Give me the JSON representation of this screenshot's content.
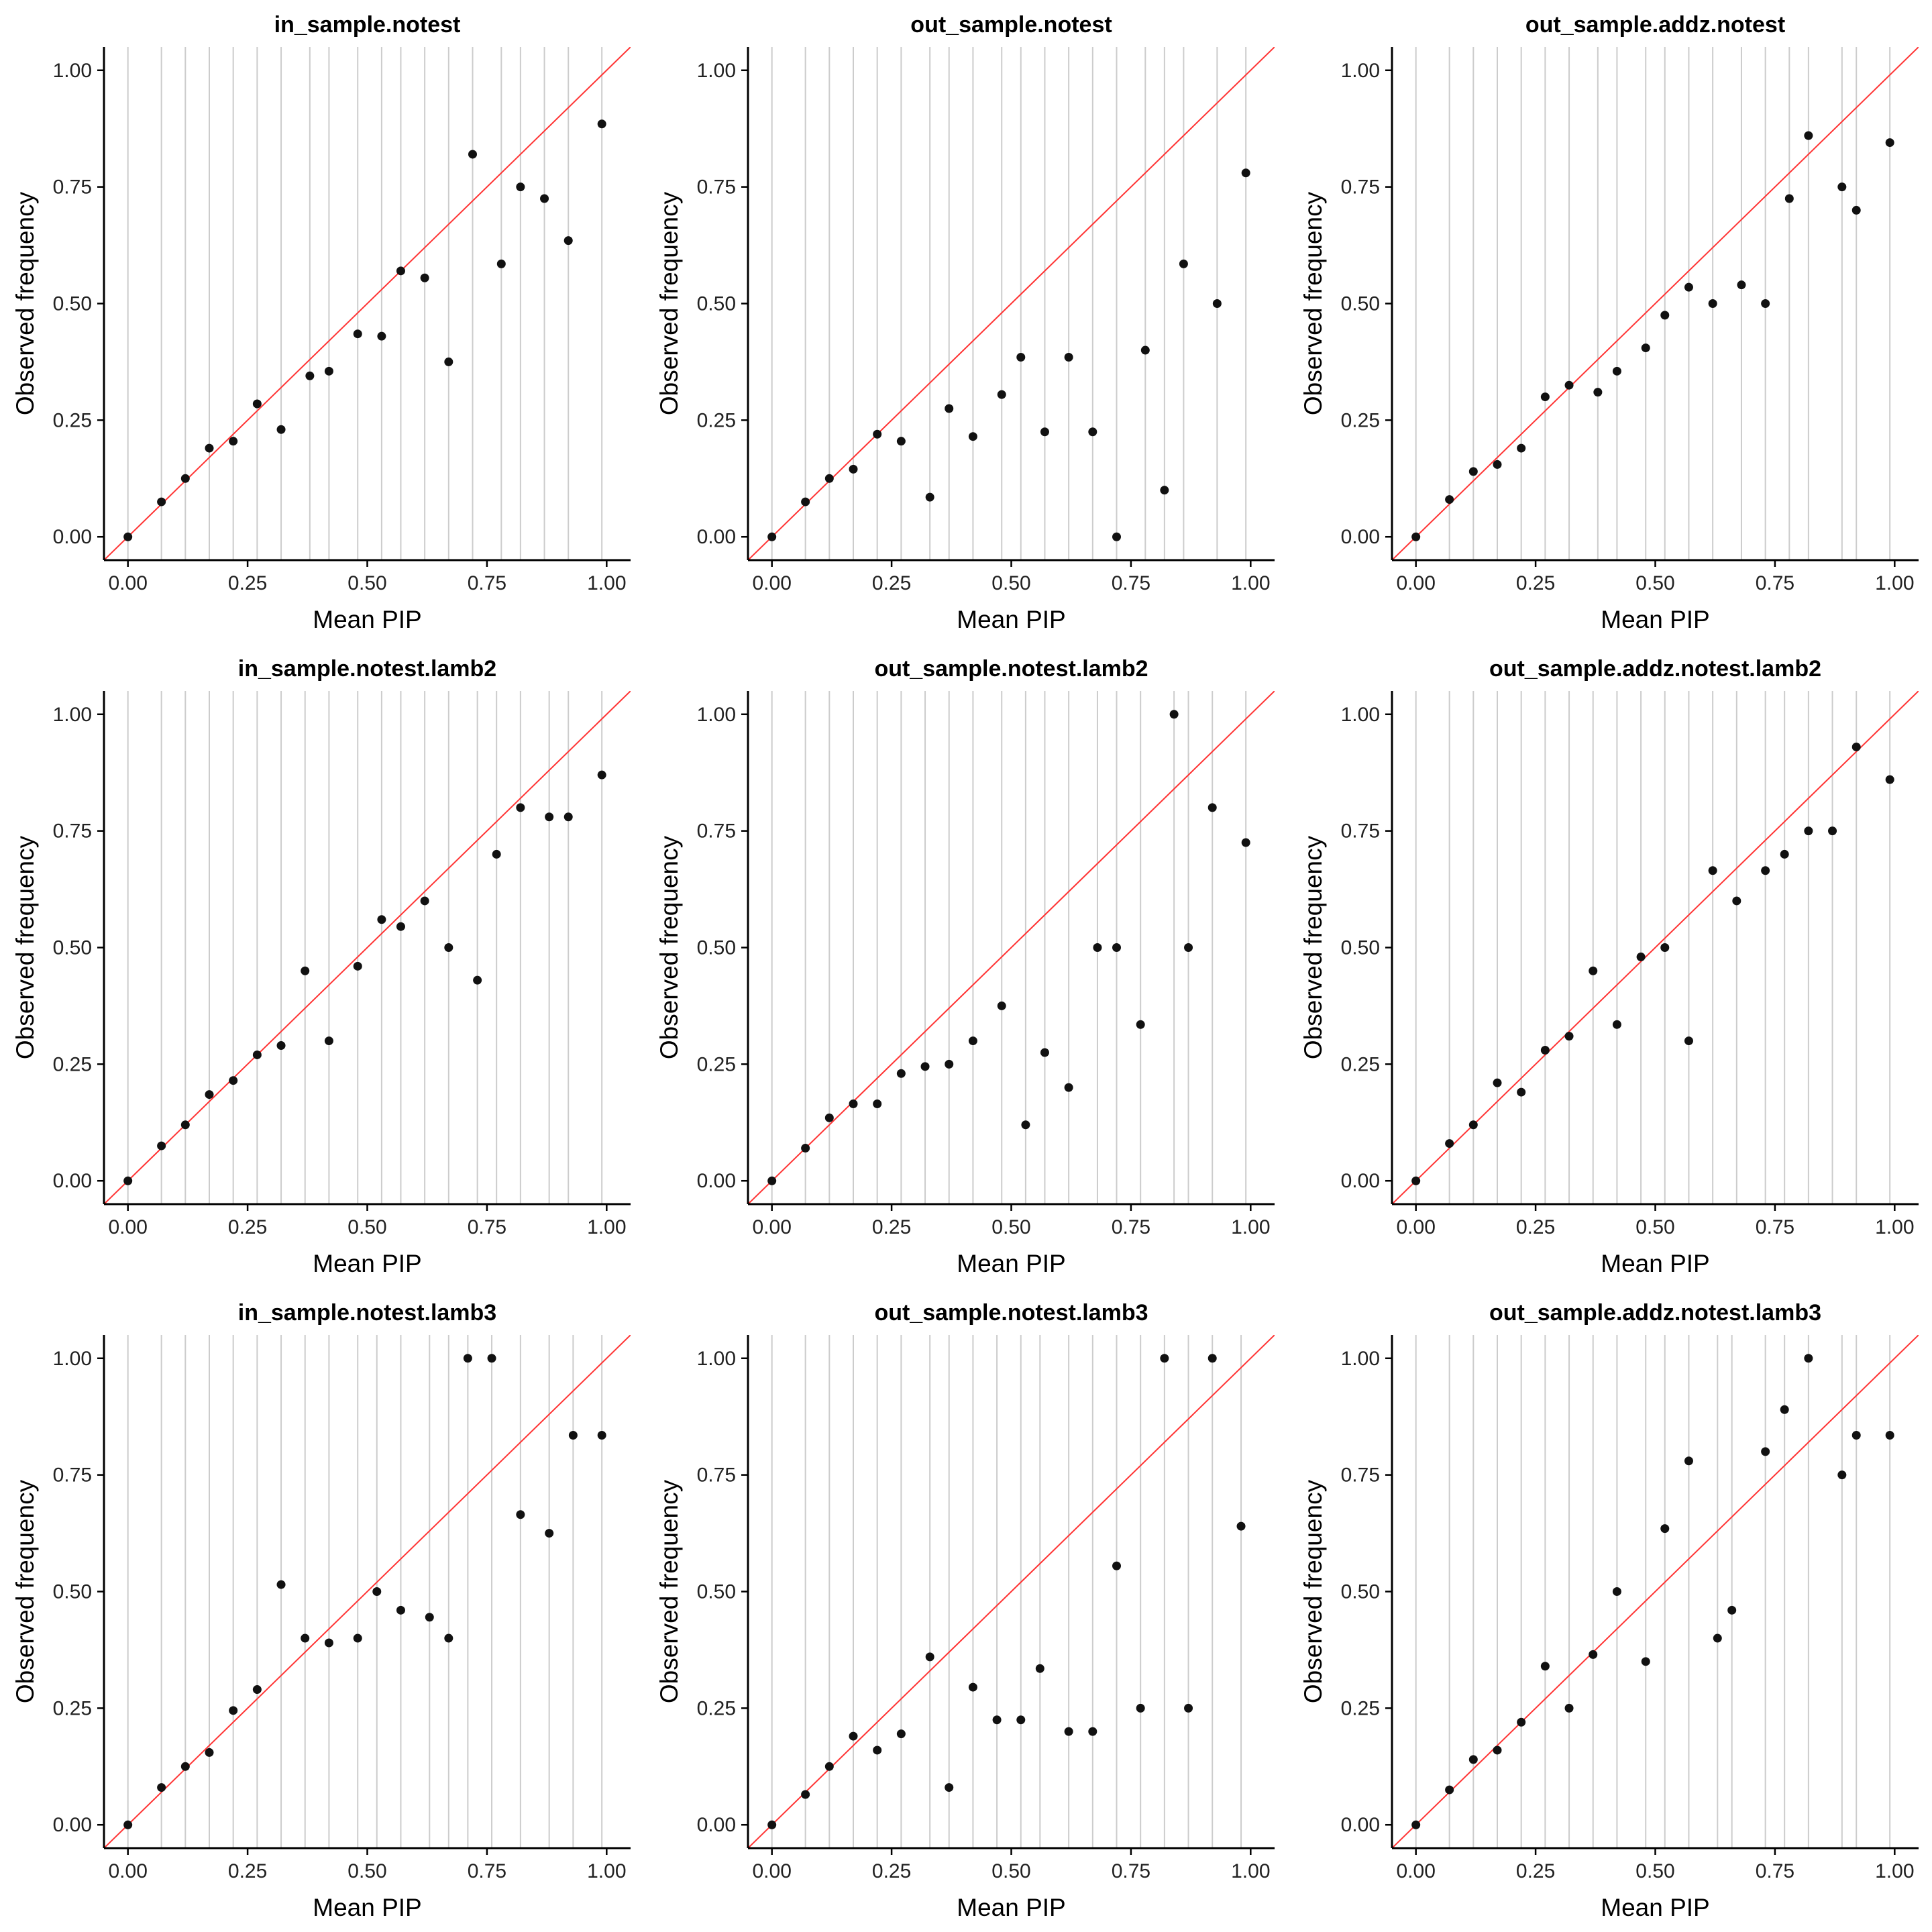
{
  "colors": {
    "identity_line": "#ff3333",
    "points": "#111111",
    "grid": "#cccccc",
    "axis": "#000000"
  },
  "chart_data": [
    {
      "type": "scatter",
      "title": "in_sample.notest",
      "xlabel": "Mean PIP",
      "ylabel": "Observed frequency",
      "xlim": [
        -0.05,
        1.05
      ],
      "ylim": [
        -0.05,
        1.05
      ],
      "xticks": [
        "0.00",
        "0.25",
        "0.50",
        "0.75",
        "1.00"
      ],
      "yticks": [
        "0.00",
        "0.25",
        "0.50",
        "0.75",
        "1.00"
      ],
      "reference_line": "y = x",
      "x": [
        0.0,
        0.07,
        0.12,
        0.17,
        0.22,
        0.27,
        0.32,
        0.38,
        0.42,
        0.48,
        0.53,
        0.57,
        0.62,
        0.67,
        0.72,
        0.78,
        0.82,
        0.87,
        0.92,
        0.99
      ],
      "y": [
        0.0,
        0.075,
        0.125,
        0.19,
        0.205,
        0.285,
        0.23,
        0.345,
        0.355,
        0.435,
        0.43,
        0.57,
        0.555,
        0.375,
        0.82,
        0.585,
        0.75,
        0.725,
        0.635,
        0.885
      ]
    },
    {
      "type": "scatter",
      "title": "out_sample.notest",
      "xlabel": "Mean PIP",
      "ylabel": "Observed frequency",
      "xlim": [
        -0.05,
        1.05
      ],
      "ylim": [
        -0.05,
        1.05
      ],
      "xticks": [
        "0.00",
        "0.25",
        "0.50",
        "0.75",
        "1.00"
      ],
      "yticks": [
        "0.00",
        "0.25",
        "0.50",
        "0.75",
        "1.00"
      ],
      "reference_line": "y = x",
      "x": [
        0.0,
        0.07,
        0.12,
        0.17,
        0.22,
        0.27,
        0.33,
        0.37,
        0.42,
        0.48,
        0.52,
        0.57,
        0.62,
        0.67,
        0.72,
        0.78,
        0.82,
        0.86,
        0.93,
        0.99
      ],
      "y": [
        0.0,
        0.075,
        0.125,
        0.145,
        0.22,
        0.205,
        0.085,
        0.275,
        0.215,
        0.305,
        0.385,
        0.225,
        0.385,
        0.225,
        0.0,
        0.4,
        0.1,
        0.585,
        0.5,
        0.78
      ]
    },
    {
      "type": "scatter",
      "title": "out_sample.addz.notest",
      "xlabel": "Mean PIP",
      "ylabel": "Observed frequency",
      "xlim": [
        -0.05,
        1.05
      ],
      "ylim": [
        -0.05,
        1.05
      ],
      "xticks": [
        "0.00",
        "0.25",
        "0.50",
        "0.75",
        "1.00"
      ],
      "yticks": [
        "0.00",
        "0.25",
        "0.50",
        "0.75",
        "1.00"
      ],
      "reference_line": "y = x",
      "x": [
        0.0,
        0.07,
        0.12,
        0.17,
        0.22,
        0.27,
        0.32,
        0.38,
        0.42,
        0.48,
        0.52,
        0.57,
        0.62,
        0.68,
        0.73,
        0.78,
        0.82,
        0.89,
        0.92,
        0.99
      ],
      "y": [
        0.0,
        0.08,
        0.14,
        0.155,
        0.19,
        0.3,
        0.325,
        0.31,
        0.355,
        0.405,
        0.475,
        0.535,
        0.5,
        0.54,
        0.5,
        0.725,
        0.86,
        0.75,
        0.7,
        0.845
      ]
    },
    {
      "type": "scatter",
      "title": "in_sample.notest.lamb2",
      "xlabel": "Mean PIP",
      "ylabel": "Observed frequency",
      "xlim": [
        -0.05,
        1.05
      ],
      "ylim": [
        -0.05,
        1.05
      ],
      "xticks": [
        "0.00",
        "0.25",
        "0.50",
        "0.75",
        "1.00"
      ],
      "yticks": [
        "0.00",
        "0.25",
        "0.50",
        "0.75",
        "1.00"
      ],
      "reference_line": "y = x",
      "x": [
        0.0,
        0.07,
        0.12,
        0.17,
        0.22,
        0.27,
        0.32,
        0.37,
        0.42,
        0.48,
        0.53,
        0.57,
        0.62,
        0.67,
        0.73,
        0.77,
        0.82,
        0.88,
        0.92,
        0.99
      ],
      "y": [
        0.0,
        0.075,
        0.12,
        0.185,
        0.215,
        0.27,
        0.29,
        0.45,
        0.3,
        0.46,
        0.56,
        0.545,
        0.6,
        0.5,
        0.43,
        0.7,
        0.8,
        0.78,
        0.78,
        0.87
      ]
    },
    {
      "type": "scatter",
      "title": "out_sample.notest.lamb2",
      "xlabel": "Mean PIP",
      "ylabel": "Observed frequency",
      "xlim": [
        -0.05,
        1.05
      ],
      "ylim": [
        -0.05,
        1.05
      ],
      "xticks": [
        "0.00",
        "0.25",
        "0.50",
        "0.75",
        "1.00"
      ],
      "yticks": [
        "0.00",
        "0.25",
        "0.50",
        "0.75",
        "1.00"
      ],
      "reference_line": "y = x",
      "x": [
        0.0,
        0.07,
        0.12,
        0.17,
        0.22,
        0.27,
        0.32,
        0.37,
        0.42,
        0.48,
        0.53,
        0.57,
        0.62,
        0.68,
        0.72,
        0.77,
        0.84,
        0.87,
        0.92,
        0.99
      ],
      "y": [
        0.0,
        0.07,
        0.135,
        0.165,
        0.165,
        0.23,
        0.245,
        0.25,
        0.3,
        0.375,
        0.12,
        0.275,
        0.2,
        0.5,
        0.5,
        0.335,
        1.0,
        0.5,
        0.8,
        0.725
      ]
    },
    {
      "type": "scatter",
      "title": "out_sample.addz.notest.lamb2",
      "xlabel": "Mean PIP",
      "ylabel": "Observed frequency",
      "xlim": [
        -0.05,
        1.05
      ],
      "ylim": [
        -0.05,
        1.05
      ],
      "xticks": [
        "0.00",
        "0.25",
        "0.50",
        "0.75",
        "1.00"
      ],
      "yticks": [
        "0.00",
        "0.25",
        "0.50",
        "0.75",
        "1.00"
      ],
      "reference_line": "y = x",
      "x": [
        0.0,
        0.07,
        0.12,
        0.17,
        0.22,
        0.27,
        0.32,
        0.37,
        0.42,
        0.47,
        0.52,
        0.57,
        0.62,
        0.67,
        0.73,
        0.77,
        0.82,
        0.87,
        0.92,
        0.99
      ],
      "y": [
        0.0,
        0.08,
        0.12,
        0.21,
        0.19,
        0.28,
        0.31,
        0.45,
        0.335,
        0.48,
        0.5,
        0.3,
        0.665,
        0.6,
        0.665,
        0.7,
        0.75,
        0.75,
        0.93,
        0.86
      ]
    },
    {
      "type": "scatter",
      "title": "in_sample.notest.lamb3",
      "xlabel": "Mean PIP",
      "ylabel": "Observed frequency",
      "xlim": [
        -0.05,
        1.05
      ],
      "ylim": [
        -0.05,
        1.05
      ],
      "xticks": [
        "0.00",
        "0.25",
        "0.50",
        "0.75",
        "1.00"
      ],
      "yticks": [
        "0.00",
        "0.25",
        "0.50",
        "0.75",
        "1.00"
      ],
      "reference_line": "y = x",
      "x": [
        0.0,
        0.07,
        0.12,
        0.17,
        0.22,
        0.27,
        0.32,
        0.37,
        0.42,
        0.48,
        0.52,
        0.57,
        0.63,
        0.67,
        0.71,
        0.76,
        0.82,
        0.88,
        0.93,
        0.99
      ],
      "y": [
        0.0,
        0.08,
        0.125,
        0.155,
        0.245,
        0.29,
        0.515,
        0.4,
        0.39,
        0.4,
        0.5,
        0.46,
        0.445,
        0.4,
        1.0,
        1.0,
        0.665,
        0.625,
        0.835,
        0.835
      ]
    },
    {
      "type": "scatter",
      "title": "out_sample.notest.lamb3",
      "xlabel": "Mean PIP",
      "ylabel": "Observed frequency",
      "xlim": [
        -0.05,
        1.05
      ],
      "ylim": [
        -0.05,
        1.05
      ],
      "xticks": [
        "0.00",
        "0.25",
        "0.50",
        "0.75",
        "1.00"
      ],
      "yticks": [
        "0.00",
        "0.25",
        "0.50",
        "0.75",
        "1.00"
      ],
      "reference_line": "y = x",
      "x": [
        0.0,
        0.07,
        0.12,
        0.17,
        0.22,
        0.27,
        0.33,
        0.37,
        0.42,
        0.47,
        0.52,
        0.56,
        0.62,
        0.67,
        0.72,
        0.77,
        0.82,
        0.87,
        0.92,
        0.98
      ],
      "y": [
        0.0,
        0.065,
        0.125,
        0.19,
        0.16,
        0.195,
        0.36,
        0.08,
        0.295,
        0.225,
        0.225,
        0.335,
        0.2,
        0.2,
        0.555,
        0.25,
        1.0,
        0.25,
        1.0,
        0.64
      ]
    },
    {
      "type": "scatter",
      "title": "out_sample.addz.notest.lamb3",
      "xlabel": "Mean PIP",
      "ylabel": "Observed frequency",
      "xlim": [
        -0.05,
        1.05
      ],
      "ylim": [
        -0.05,
        1.05
      ],
      "xticks": [
        "0.00",
        "0.25",
        "0.50",
        "0.75",
        "1.00"
      ],
      "yticks": [
        "0.00",
        "0.25",
        "0.50",
        "0.75",
        "1.00"
      ],
      "reference_line": "y = x",
      "x": [
        0.0,
        0.07,
        0.12,
        0.17,
        0.22,
        0.27,
        0.32,
        0.37,
        0.42,
        0.48,
        0.52,
        0.57,
        0.63,
        0.66,
        0.73,
        0.77,
        0.82,
        0.89,
        0.92,
        0.99
      ],
      "y": [
        0.0,
        0.075,
        0.14,
        0.16,
        0.22,
        0.34,
        0.25,
        0.365,
        0.5,
        0.35,
        0.635,
        0.78,
        0.4,
        0.46,
        0.8,
        0.89,
        1.0,
        0.75,
        0.835,
        0.835
      ]
    }
  ]
}
